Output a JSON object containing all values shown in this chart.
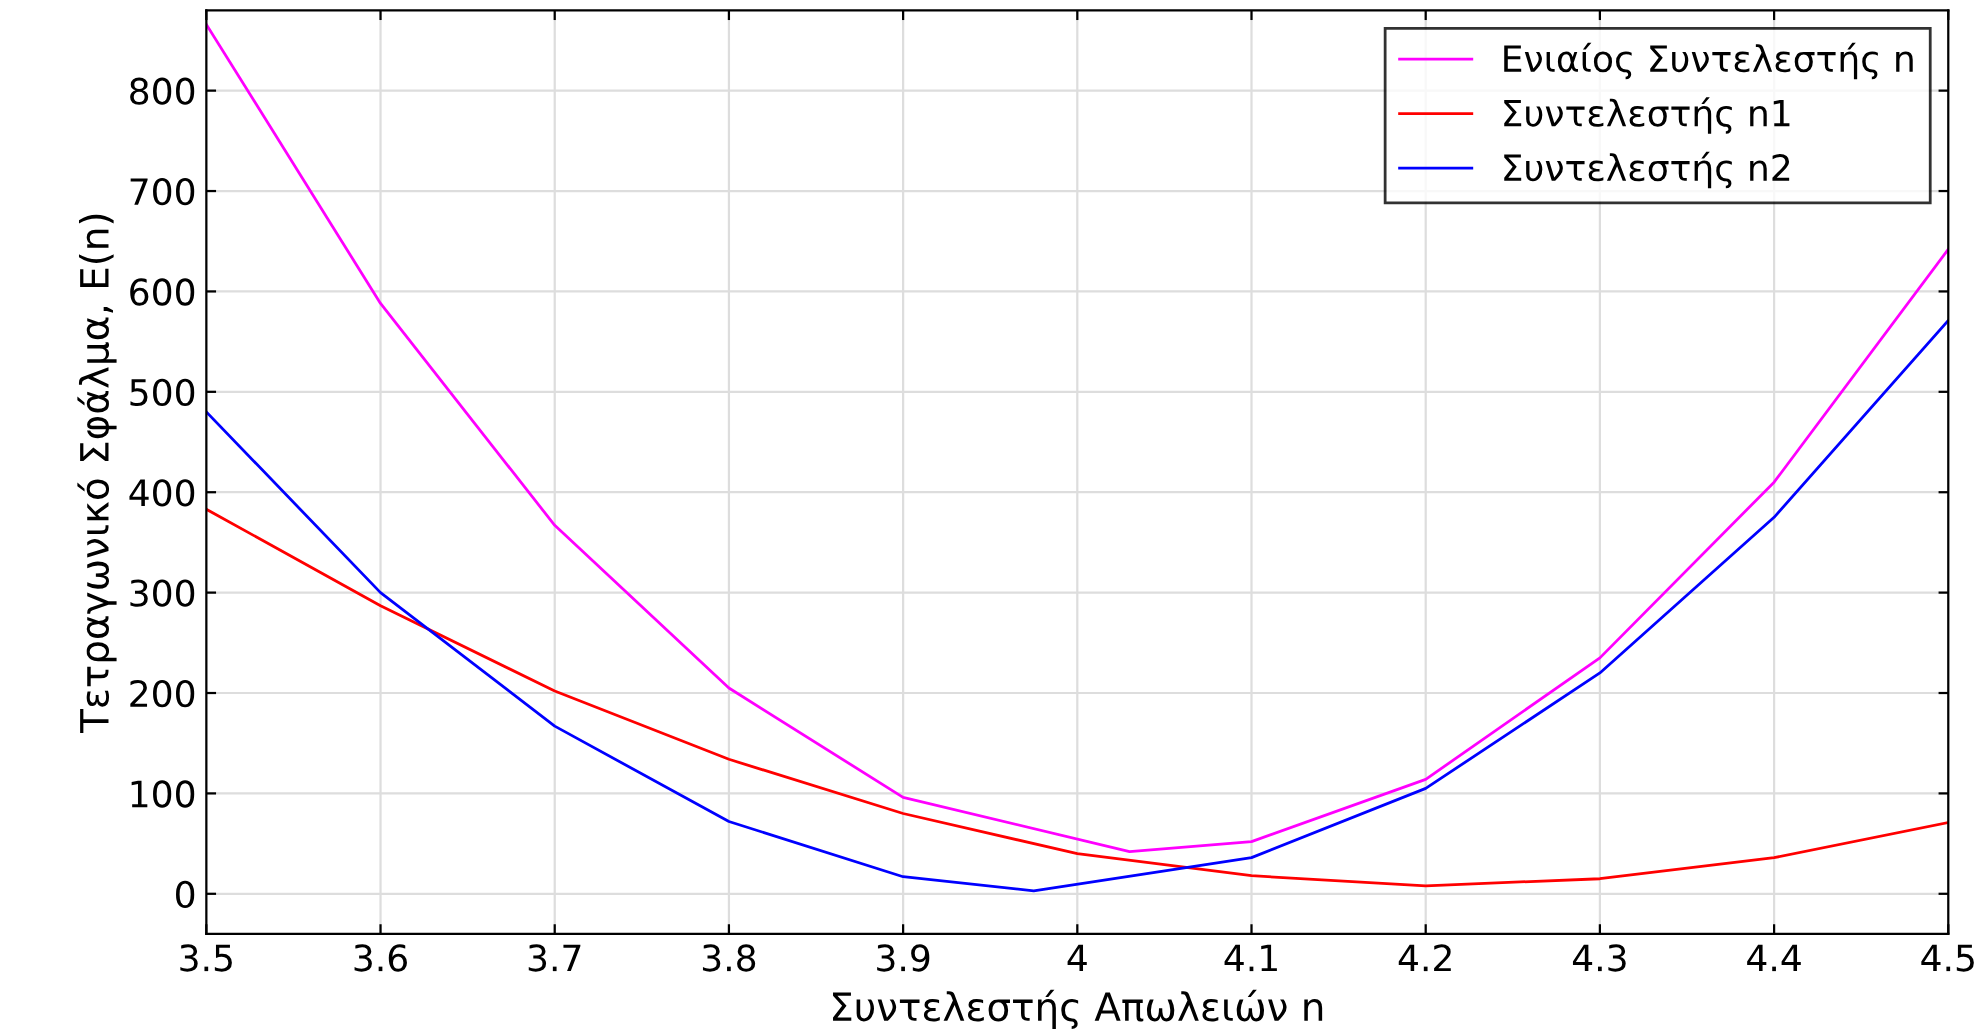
{
  "chart_data": {
    "type": "line",
    "xlabel": "Συντελεστής Απωλειών n",
    "ylabel": "Τετραγωνικό Σφάλμα, E(n)",
    "series": [
      {
        "name": "Ενιαίος Συντελεστής n",
        "color": "#ff00ff",
        "x": [
          3.5,
          3.6,
          3.7,
          3.8,
          3.9,
          4.03,
          4.1,
          4.2,
          4.3,
          4.4,
          4.5
        ],
        "values": [
          866,
          588,
          367,
          205,
          96,
          42,
          52,
          114,
          235,
          410,
          642
        ]
      },
      {
        "name": "Συντελεστής n1",
        "color": "#ff0000",
        "x": [
          3.5,
          3.6,
          3.7,
          3.8,
          3.9,
          4.0,
          4.1,
          4.2,
          4.3,
          4.4,
          4.5
        ],
        "values": [
          383,
          287,
          202,
          134,
          80,
          40,
          18,
          8,
          15,
          36,
          71
        ]
      },
      {
        "name": "Συντελεστής n2",
        "color": "#0000ff",
        "x": [
          3.5,
          3.6,
          3.7,
          3.8,
          3.9,
          3.975,
          4.1,
          4.2,
          4.3,
          4.4,
          4.5
        ],
        "values": [
          480,
          300,
          167,
          72,
          17,
          3,
          36,
          105,
          220,
          375,
          571
        ]
      }
    ],
    "xlim": [
      3.5,
      4.5
    ],
    "xticks": [
      3.5,
      3.6,
      3.7,
      3.8,
      3.9,
      4,
      4.1,
      4.2,
      4.3,
      4.4,
      4.5
    ],
    "ylim": [
      -40,
      880
    ],
    "yticks": [
      0,
      100,
      200,
      300,
      400,
      500,
      600,
      700,
      800
    ],
    "grid": true,
    "legend": "top right",
    "marker": "none",
    "line_style": "solid"
  }
}
